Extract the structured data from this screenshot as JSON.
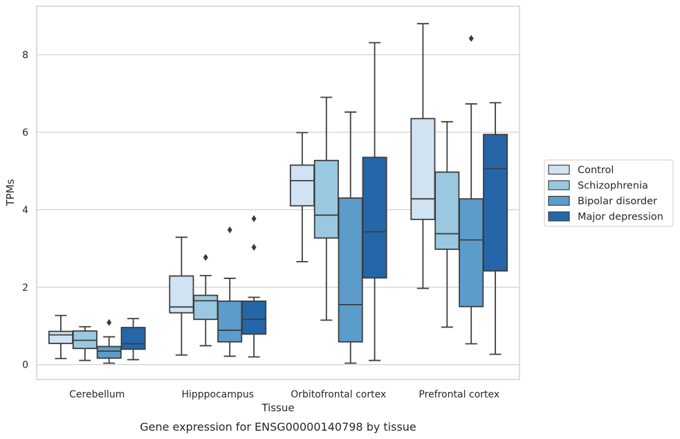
{
  "chart_data": {
    "type": "box",
    "caption": "Gene expression for ENSG00000140798 by tissue",
    "xlabel": "Tissue",
    "ylabel": "TPMs",
    "ylim": [
      -0.38,
      9.25
    ],
    "yticks": [
      0,
      2,
      4,
      6,
      8
    ],
    "grid": true,
    "legend_position": "right",
    "categories": [
      "Cerebellum",
      "Hipppocampus",
      "Orbitofrontal cortex",
      "Prefrontal cortex"
    ],
    "series": [
      {
        "name": "Control",
        "color": "#d1e2f2",
        "boxes": [
          {
            "whisker_low": 0.16,
            "q1": 0.55,
            "median": 0.77,
            "q3": 0.86,
            "whisker_high": 1.27,
            "outliers": []
          },
          {
            "whisker_low": 0.25,
            "q1": 1.34,
            "median": 1.49,
            "q3": 2.29,
            "whisker_high": 3.29,
            "outliers": []
          },
          {
            "whisker_low": 2.66,
            "q1": 4.1,
            "median": 4.75,
            "q3": 5.15,
            "whisker_high": 5.99,
            "outliers": []
          },
          {
            "whisker_low": 1.97,
            "q1": 3.75,
            "median": 4.28,
            "q3": 6.35,
            "whisker_high": 8.8,
            "outliers": []
          }
        ]
      },
      {
        "name": "Schizophrenia",
        "color": "#9ac8e0",
        "boxes": [
          {
            "whisker_low": 0.11,
            "q1": 0.42,
            "median": 0.63,
            "q3": 0.87,
            "whisker_high": 0.98,
            "outliers": []
          },
          {
            "whisker_low": 0.49,
            "q1": 1.17,
            "median": 1.65,
            "q3": 1.79,
            "whisker_high": 2.3,
            "outliers": [
              2.77
            ]
          },
          {
            "whisker_low": 1.15,
            "q1": 3.27,
            "median": 3.86,
            "q3": 5.27,
            "whisker_high": 6.9,
            "outliers": []
          },
          {
            "whisker_low": 0.97,
            "q1": 2.98,
            "median": 3.38,
            "q3": 4.97,
            "whisker_high": 6.27,
            "outliers": []
          }
        ]
      },
      {
        "name": "Bipolar disorder",
        "color": "#5b9ccb",
        "boxes": [
          {
            "whisker_low": 0.04,
            "q1": 0.17,
            "median": 0.35,
            "q3": 0.47,
            "whisker_high": 0.72,
            "outliers": [
              1.09
            ]
          },
          {
            "whisker_low": 0.22,
            "q1": 0.59,
            "median": 0.89,
            "q3": 1.64,
            "whisker_high": 2.23,
            "outliers": [
              3.48
            ]
          },
          {
            "whisker_low": 0.04,
            "q1": 0.59,
            "median": 1.55,
            "q3": 4.3,
            "whisker_high": 6.52,
            "outliers": []
          },
          {
            "whisker_low": 0.54,
            "q1": 1.5,
            "median": 3.22,
            "q3": 4.28,
            "whisker_high": 6.73,
            "outliers": [
              8.42
            ]
          }
        ]
      },
      {
        "name": "Major depression",
        "color": "#2566a8",
        "boxes": [
          {
            "whisker_low": 0.13,
            "q1": 0.4,
            "median": 0.54,
            "q3": 0.96,
            "whisker_high": 1.19,
            "outliers": []
          },
          {
            "whisker_low": 0.2,
            "q1": 0.79,
            "median": 1.17,
            "q3": 1.64,
            "whisker_high": 1.74,
            "outliers": [
              3.03,
              3.77
            ]
          },
          {
            "whisker_low": 0.11,
            "q1": 2.24,
            "median": 3.43,
            "q3": 5.35,
            "whisker_high": 8.31,
            "outliers": []
          },
          {
            "whisker_low": 0.27,
            "q1": 2.42,
            "median": 5.06,
            "q3": 5.94,
            "whisker_high": 6.76,
            "outliers": []
          }
        ]
      }
    ]
  }
}
